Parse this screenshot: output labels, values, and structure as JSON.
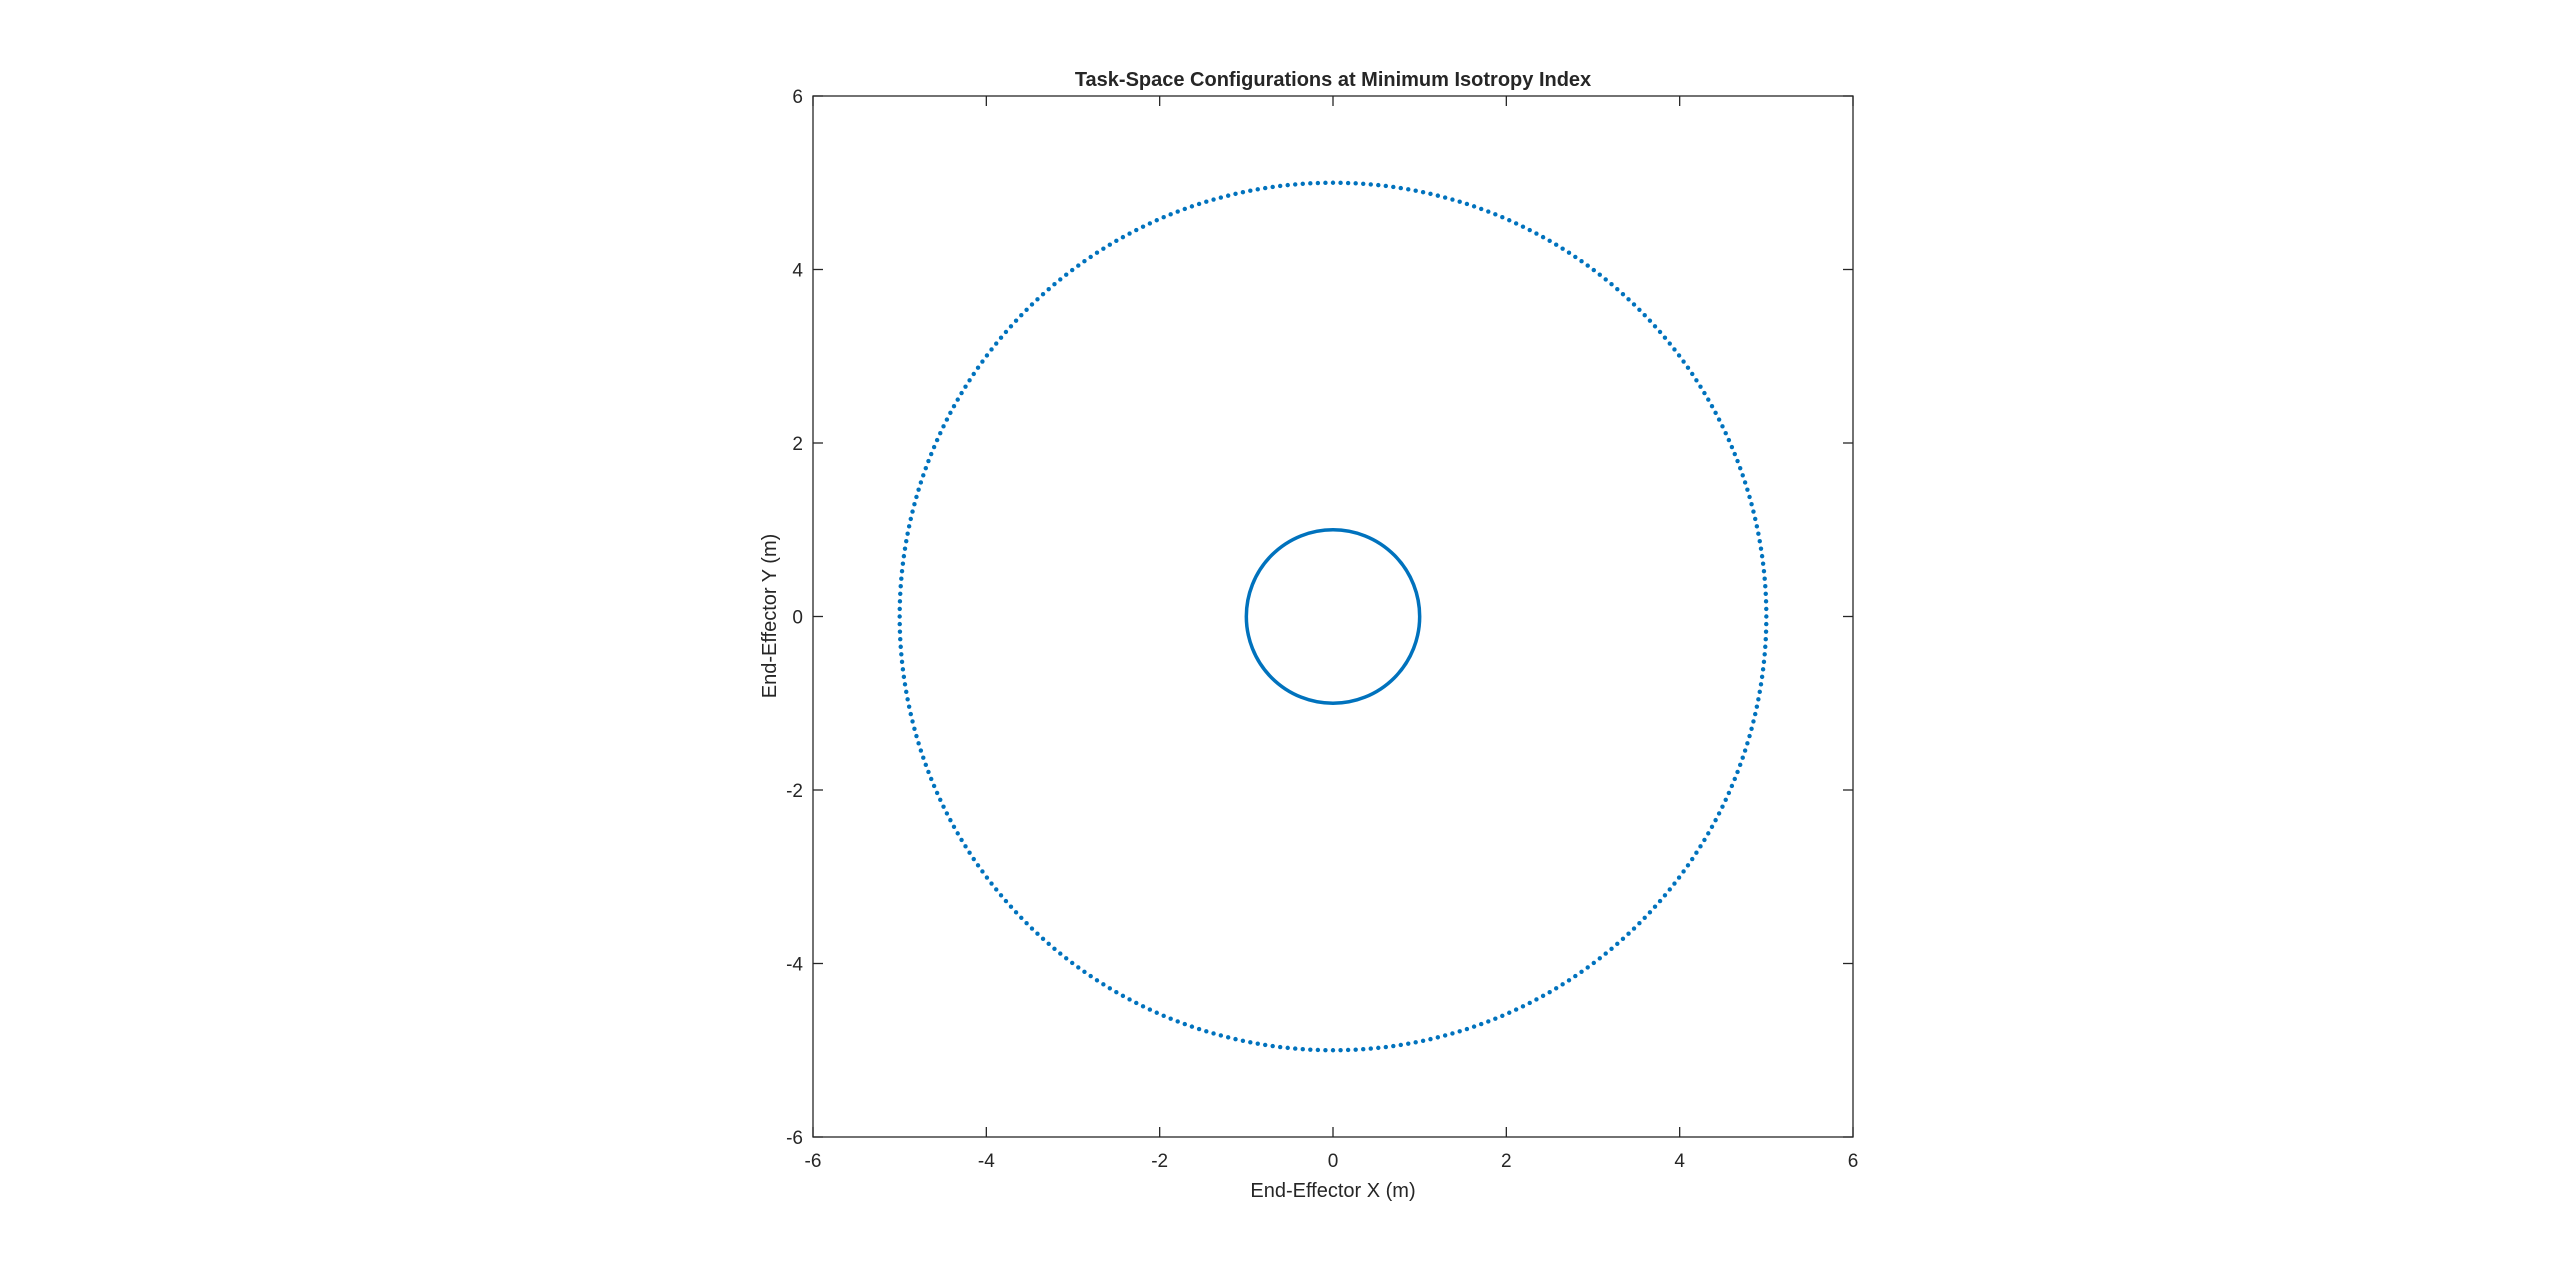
{
  "chart_data": {
    "type": "scatter",
    "title": "Task-Space Configurations at Minimum Isotropy Index",
    "xlabel": "End-Effector X (m)",
    "ylabel": "End-Effector Y (m)",
    "xlim": [
      -6,
      6
    ],
    "ylim": [
      -6,
      6
    ],
    "xticks": [
      -6,
      -4,
      -2,
      0,
      2,
      4,
      6
    ],
    "yticks": [
      -6,
      -4,
      -2,
      0,
      2,
      4,
      6
    ],
    "grid": false,
    "legend": "none",
    "series": [
      {
        "style": "markers",
        "color": "#0072BD",
        "shape": "circle",
        "center": [
          0,
          0
        ],
        "radius": 5,
        "point_count": 360
      },
      {
        "style": "solid-line",
        "color": "#0072BD",
        "shape": "circle",
        "center": [
          0,
          0
        ],
        "radius": 1
      }
    ]
  }
}
